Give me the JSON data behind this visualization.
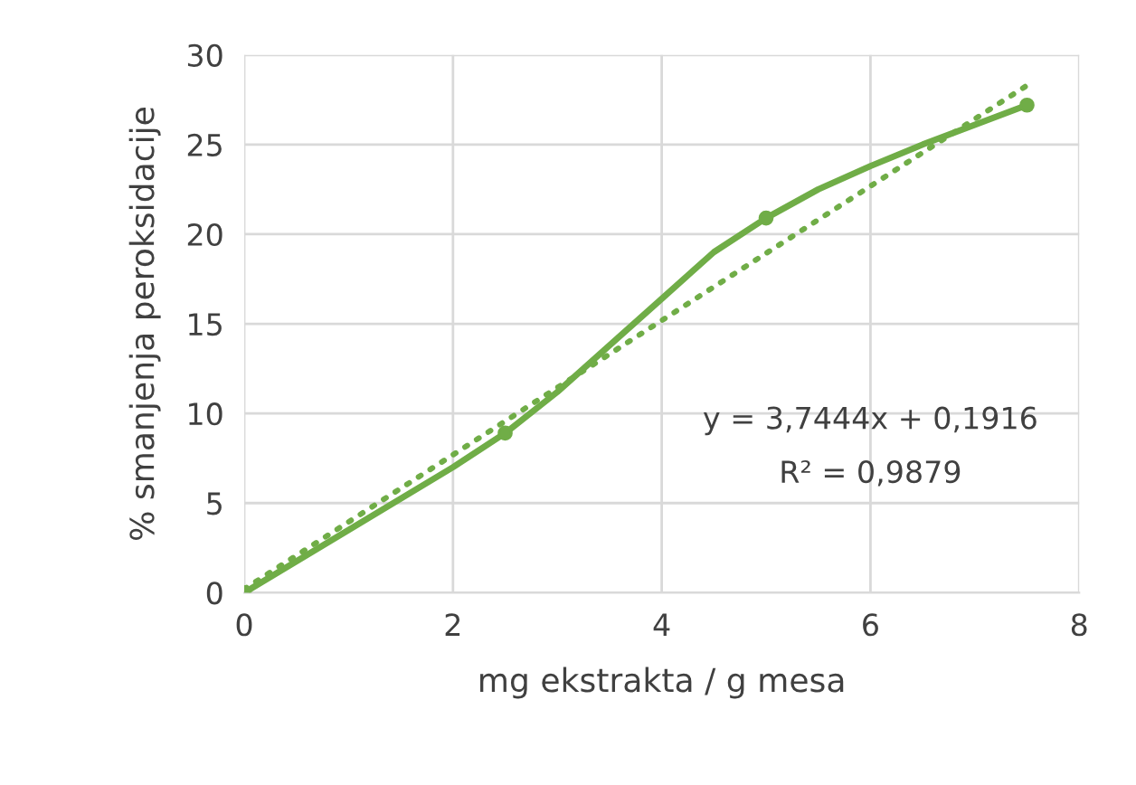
{
  "chart_data": {
    "type": "line",
    "xlabel": "mg ekstrakta / g mesa",
    "ylabel": "% smanjenja peroksidacije",
    "series": [
      {
        "color": "#70ad47",
        "x": [
          0,
          1,
          2,
          2.5,
          3,
          3.5,
          4,
          4.5,
          5,
          5.5,
          6,
          6.5,
          7,
          7.5
        ],
        "values": [
          0,
          3.5,
          7.0,
          8.9,
          11.2,
          13.8,
          16.4,
          19.0,
          20.9,
          22.5,
          23.8,
          25.0,
          26.1,
          27.2
        ],
        "marker": "none",
        "line_style": "solid"
      },
      {
        "type": "scatter",
        "color": "#70ad47",
        "x": [
          0,
          2.5,
          5,
          7.5
        ],
        "values": [
          0,
          8.9,
          20.9,
          27.2
        ],
        "marker": "circle"
      },
      {
        "color": "#70ad47",
        "x": [
          0,
          7.5
        ],
        "values": [
          0.2,
          28.3
        ],
        "marker": "none",
        "line_style": "dotted"
      }
    ],
    "annotations": [
      "y = 3,7444x + 0,1916",
      "R² = 0,9879"
    ],
    "xlim": [
      0,
      8
    ],
    "xticks": [
      0,
      2,
      4,
      6,
      8
    ],
    "ylim": [
      0,
      30
    ],
    "yticks": [
      0,
      5,
      10,
      15,
      20,
      25,
      30
    ],
    "grid": true,
    "legend": false
  }
}
